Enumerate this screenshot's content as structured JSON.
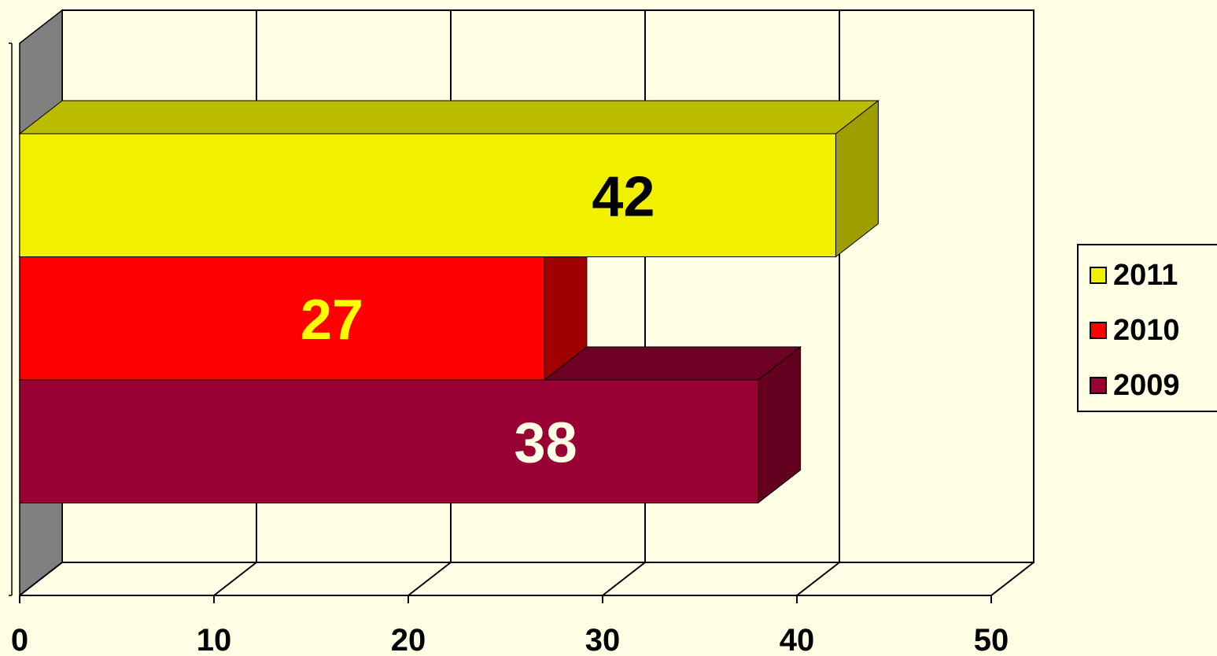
{
  "chart_data": {
    "type": "bar",
    "orientation": "horizontal",
    "three_d": true,
    "grid": true,
    "legend_position": "right",
    "xlim": [
      0,
      50
    ],
    "x_ticks": [
      0,
      10,
      20,
      30,
      40,
      50
    ],
    "background_color": "#FFFFE5",
    "series": [
      {
        "name": "2011",
        "value": 42,
        "color": "#F0F000",
        "side_color": "#9E9E00",
        "top_color": "#BBBB00",
        "label_color": "#000000"
      },
      {
        "name": "2010",
        "value": 27,
        "color": "#FF0000",
        "side_color": "#A00000",
        "top_color": "#C00000",
        "label_color": "#FFFF00"
      },
      {
        "name": "2009",
        "value": 38,
        "color": "#990033",
        "side_color": "#640020",
        "top_color": "#6E0025",
        "label_color": "#FFFFE5"
      }
    ]
  }
}
